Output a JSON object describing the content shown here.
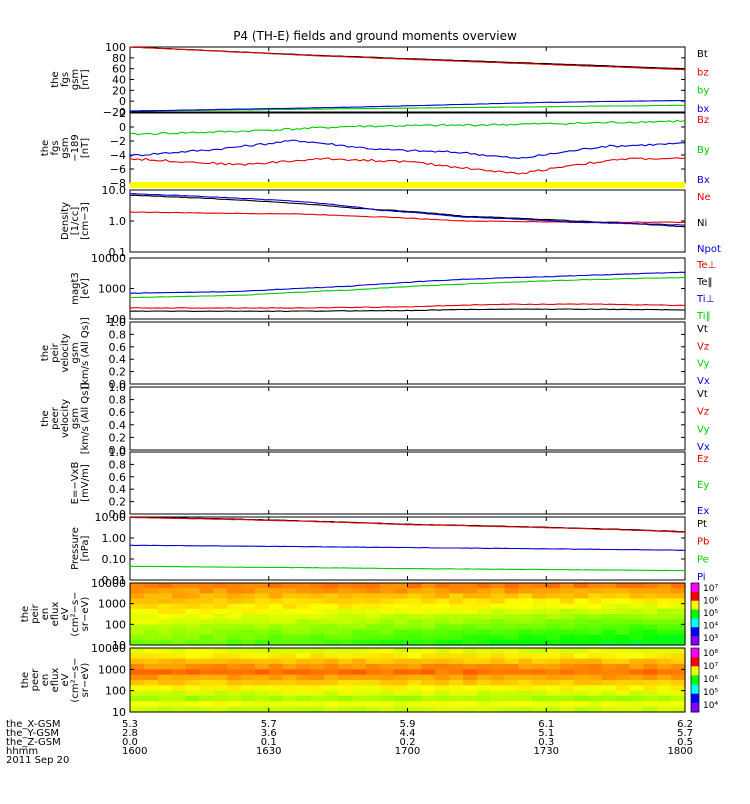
{
  "title": "P4 (TH-E) fields and ground moments overview",
  "colors": {
    "black": "#000000",
    "red": "#e60000",
    "green": "#00cc00",
    "blue": "#0000d6",
    "yellow": "#ffff00"
  },
  "chart_data": [
    {
      "type": "line",
      "ylabel": [
        "the",
        "fgs",
        "gsm",
        "[nT]"
      ],
      "yticks": [
        "100",
        "80",
        "60",
        "40",
        "20",
        "0",
        "−20"
      ],
      "ylim": [
        -30,
        105
      ],
      "x_range": [
        "1600",
        "1800"
      ],
      "series": [
        {
          "name": "Bt",
          "color": "black",
          "points": [
            [
              0,
              105
            ],
            [
              0.33,
              88
            ],
            [
              1,
              60
            ]
          ]
        },
        {
          "name": "bz",
          "color": "red",
          "points": [
            [
              0,
              105
            ],
            [
              0.33,
              87
            ],
            [
              1,
              58
            ]
          ]
        },
        {
          "name": "by",
          "color": "green",
          "points": [
            [
              0,
              -28
            ],
            [
              0.5,
              -22
            ],
            [
              1,
              -16
            ]
          ]
        },
        {
          "name": "bx",
          "color": "blue",
          "points": [
            [
              0,
              -28
            ],
            [
              0.4,
              -20
            ],
            [
              0.75,
              -10
            ],
            [
              1,
              -6
            ]
          ]
        }
      ]
    },
    {
      "type": "line",
      "ylabel": [
        "the",
        "fgs",
        "gsm",
        "−189",
        "[nT]"
      ],
      "yticks": [
        "2",
        "0",
        "−2",
        "−4",
        "−6",
        "−8"
      ],
      "ylim": [
        -9,
        2.5
      ],
      "x_range": [
        "1600",
        "1800"
      ],
      "series": [
        {
          "name": "Bz",
          "color": "red",
          "points": [
            [
              0,
              -5
            ],
            [
              0.1,
              -5.5
            ],
            [
              0.2,
              -6
            ],
            [
              0.35,
              -5
            ],
            [
              0.5,
              -5.5
            ],
            [
              0.6,
              -6.5
            ],
            [
              0.7,
              -7.5
            ],
            [
              0.8,
              -6
            ],
            [
              0.9,
              -5
            ],
            [
              1,
              -5
            ]
          ]
        },
        {
          "name": "By",
          "color": "green",
          "points": [
            [
              0,
              -1
            ],
            [
              0.2,
              -0.5
            ],
            [
              0.4,
              0.3
            ],
            [
              0.6,
              0.5
            ],
            [
              0.8,
              0.8
            ],
            [
              1,
              1.2
            ]
          ]
        },
        {
          "name": "Bx",
          "color": "blue",
          "points": [
            [
              0,
              -4.5
            ],
            [
              0.15,
              -3.5
            ],
            [
              0.3,
              -2
            ],
            [
              0.45,
              -3.5
            ],
            [
              0.6,
              -4
            ],
            [
              0.7,
              -5
            ],
            [
              0.85,
              -3
            ],
            [
              1,
              -2.5
            ]
          ]
        }
      ]
    },
    {
      "type": "line",
      "log": true,
      "ylabel": [
        "Density",
        "[1/cc]",
        "[cm−3]"
      ],
      "yticks": [
        "10.0",
        "1.0",
        "0.1"
      ],
      "ylim": [
        0.1,
        12
      ],
      "x_range": [
        "1600",
        "1800"
      ],
      "bar_color": "yellow",
      "series": [
        {
          "name": "Ne",
          "color": "red",
          "points": [
            [
              0,
              2.2
            ],
            [
              0.15,
              2.0
            ],
            [
              0.3,
              1.9
            ],
            [
              0.45,
              1.5
            ],
            [
              0.6,
              1.1
            ],
            [
              0.8,
              1.0
            ],
            [
              1,
              1.0
            ]
          ]
        },
        {
          "name": "Ni",
          "color": "black",
          "points": [
            [
              0,
              8
            ],
            [
              0.2,
              5.5
            ],
            [
              0.4,
              3
            ],
            [
              0.6,
              1.6
            ],
            [
              0.8,
              1.1
            ],
            [
              1,
              0.7
            ]
          ]
        },
        {
          "name": "Npot",
          "color": "blue",
          "points": [
            [
              0,
              9
            ],
            [
              0.15,
              7
            ],
            [
              0.3,
              5
            ],
            [
              0.45,
              2.5
            ],
            [
              0.6,
              1.5
            ],
            [
              0.8,
              1.0
            ],
            [
              1,
              0.8
            ]
          ]
        }
      ]
    },
    {
      "type": "line",
      "log": true,
      "ylabel": [
        "magt3",
        "[eV]"
      ],
      "yticks": [
        "10000",
        "1000",
        "100"
      ],
      "ylim": [
        100,
        10000
      ],
      "x_range": [
        "1600",
        "1800"
      ],
      "series": [
        {
          "name": "Te⊥",
          "color": "red",
          "points": [
            [
              0,
              230
            ],
            [
              0.3,
              230
            ],
            [
              0.5,
              250
            ],
            [
              0.65,
              300
            ],
            [
              0.8,
              310
            ],
            [
              1,
              280
            ]
          ]
        },
        {
          "name": "Te‖",
          "color": "black",
          "points": [
            [
              0,
              180
            ],
            [
              0.3,
              180
            ],
            [
              0.5,
              190
            ],
            [
              0.65,
              210
            ],
            [
              0.8,
              210
            ],
            [
              1,
              200
            ]
          ]
        },
        {
          "name": "Ti⊥",
          "color": "blue",
          "points": [
            [
              0,
              700
            ],
            [
              0.2,
              800
            ],
            [
              0.4,
              1200
            ],
            [
              0.6,
              2000
            ],
            [
              0.8,
              2600
            ],
            [
              1,
              3400
            ]
          ]
        },
        {
          "name": "Ti‖",
          "color": "green",
          "points": [
            [
              0,
              500
            ],
            [
              0.2,
              600
            ],
            [
              0.4,
              900
            ],
            [
              0.6,
              1400
            ],
            [
              0.8,
              1900
            ],
            [
              1,
              2300
            ]
          ]
        }
      ]
    },
    {
      "type": "line",
      "ylabel": [
        "the",
        "peir",
        "velocity",
        "gsm",
        "[km/s (All Qs)]"
      ],
      "yticks": [
        "1.0",
        "0.8",
        "0.6",
        "0.4",
        "0.2",
        "0.0"
      ],
      "ylim": [
        0,
        1
      ],
      "x_range": [
        "1600",
        "1800"
      ],
      "series": [
        {
          "name": "Vt",
          "color": "black",
          "points": []
        },
        {
          "name": "Vz",
          "color": "red",
          "points": []
        },
        {
          "name": "Vy",
          "color": "green",
          "points": []
        },
        {
          "name": "Vx",
          "color": "blue",
          "points": []
        }
      ]
    },
    {
      "type": "line",
      "ylabel": [
        "the",
        "peer",
        "velocity",
        "gsm",
        "[km/s (All Qs)]"
      ],
      "yticks": [
        "1.0",
        "0.8",
        "0.6",
        "0.4",
        "0.2",
        "0.0"
      ],
      "ylim": [
        0,
        1
      ],
      "x_range": [
        "1600",
        "1800"
      ],
      "series": [
        {
          "name": "Vt",
          "color": "black",
          "points": []
        },
        {
          "name": "Vz",
          "color": "red",
          "points": []
        },
        {
          "name": "Vy",
          "color": "green",
          "points": []
        },
        {
          "name": "Vx",
          "color": "blue",
          "points": []
        }
      ]
    },
    {
      "type": "line",
      "ylabel": [
        "E=−VxB",
        "[mV/m]"
      ],
      "yticks": [
        "1.0",
        "0.8",
        "0.6",
        "0.4",
        "0.2",
        "0.0"
      ],
      "ylim": [
        0,
        1
      ],
      "x_range": [
        "1600",
        "1800"
      ],
      "series": [
        {
          "name": "Ez",
          "color": "red",
          "points": []
        },
        {
          "name": "Ey",
          "color": "green",
          "points": []
        },
        {
          "name": "Ex",
          "color": "blue",
          "points": []
        }
      ]
    },
    {
      "type": "line",
      "log": true,
      "ylabel": [
        "Pressure",
        "[nPa]"
      ],
      "yticks": [
        "10.00",
        "1.00",
        "0.10",
        "0.01"
      ],
      "ylim": [
        0.01,
        10
      ],
      "x_range": [
        "1600",
        "1800"
      ],
      "series": [
        {
          "name": "Pt",
          "color": "black",
          "points": [
            [
              0,
              10
            ],
            [
              0.5,
              4.5
            ],
            [
              1,
              2.0
            ]
          ]
        },
        {
          "name": "Pb",
          "color": "red",
          "points": [
            [
              0,
              9.5
            ],
            [
              0.5,
              4.3
            ],
            [
              1,
              1.9
            ]
          ]
        },
        {
          "name": "Pe",
          "color": "green",
          "points": [
            [
              0,
              0.045
            ],
            [
              0.5,
              0.035
            ],
            [
              1,
              0.028
            ]
          ]
        },
        {
          "name": "Pi",
          "color": "blue",
          "points": [
            [
              0,
              0.45
            ],
            [
              0.5,
              0.35
            ],
            [
              1,
              0.26
            ]
          ]
        }
      ]
    },
    {
      "type": "heatmap",
      "ylabel": [
        "the",
        "peir",
        "en",
        "eflux",
        "eV",
        "(cm²−s−",
        "sr−eV)"
      ],
      "yticks": [
        "10000",
        "1000",
        "100",
        "10"
      ],
      "x_range": [
        "1600",
        "1800"
      ],
      "colorbar_ticks": [
        "10⁷",
        "10⁶",
        "10⁵",
        "10⁴",
        "10³"
      ]
    },
    {
      "type": "heatmap",
      "ylabel": [
        "the",
        "peer",
        "en",
        "eflux",
        "eV",
        "(cm²−s−",
        "sr−eV)"
      ],
      "yticks": [
        "10000",
        "1000",
        "100",
        "10"
      ],
      "x_range": [
        "1600",
        "1800"
      ],
      "colorbar_ticks": [
        "10⁸",
        "10⁷",
        "10⁶",
        "10⁵",
        "10⁴"
      ]
    }
  ],
  "footer": {
    "rows": [
      {
        "label": "the_X-GSM",
        "values": [
          "5.3",
          "5.7",
          "5.9",
          "6.1",
          "6.2"
        ]
      },
      {
        "label": "the_Y-GSM",
        "values": [
          "2.8",
          "3.6",
          "4.4",
          "5.1",
          "5.7"
        ]
      },
      {
        "label": "the_Z-GSM",
        "values": [
          "0.0",
          "0.1",
          "0.2",
          "0.3",
          "0.5"
        ]
      },
      {
        "label": "hhmm",
        "values": [
          "1600",
          "1630",
          "1700",
          "1730",
          "1800"
        ]
      }
    ],
    "date": "2011 Sep 20"
  }
}
